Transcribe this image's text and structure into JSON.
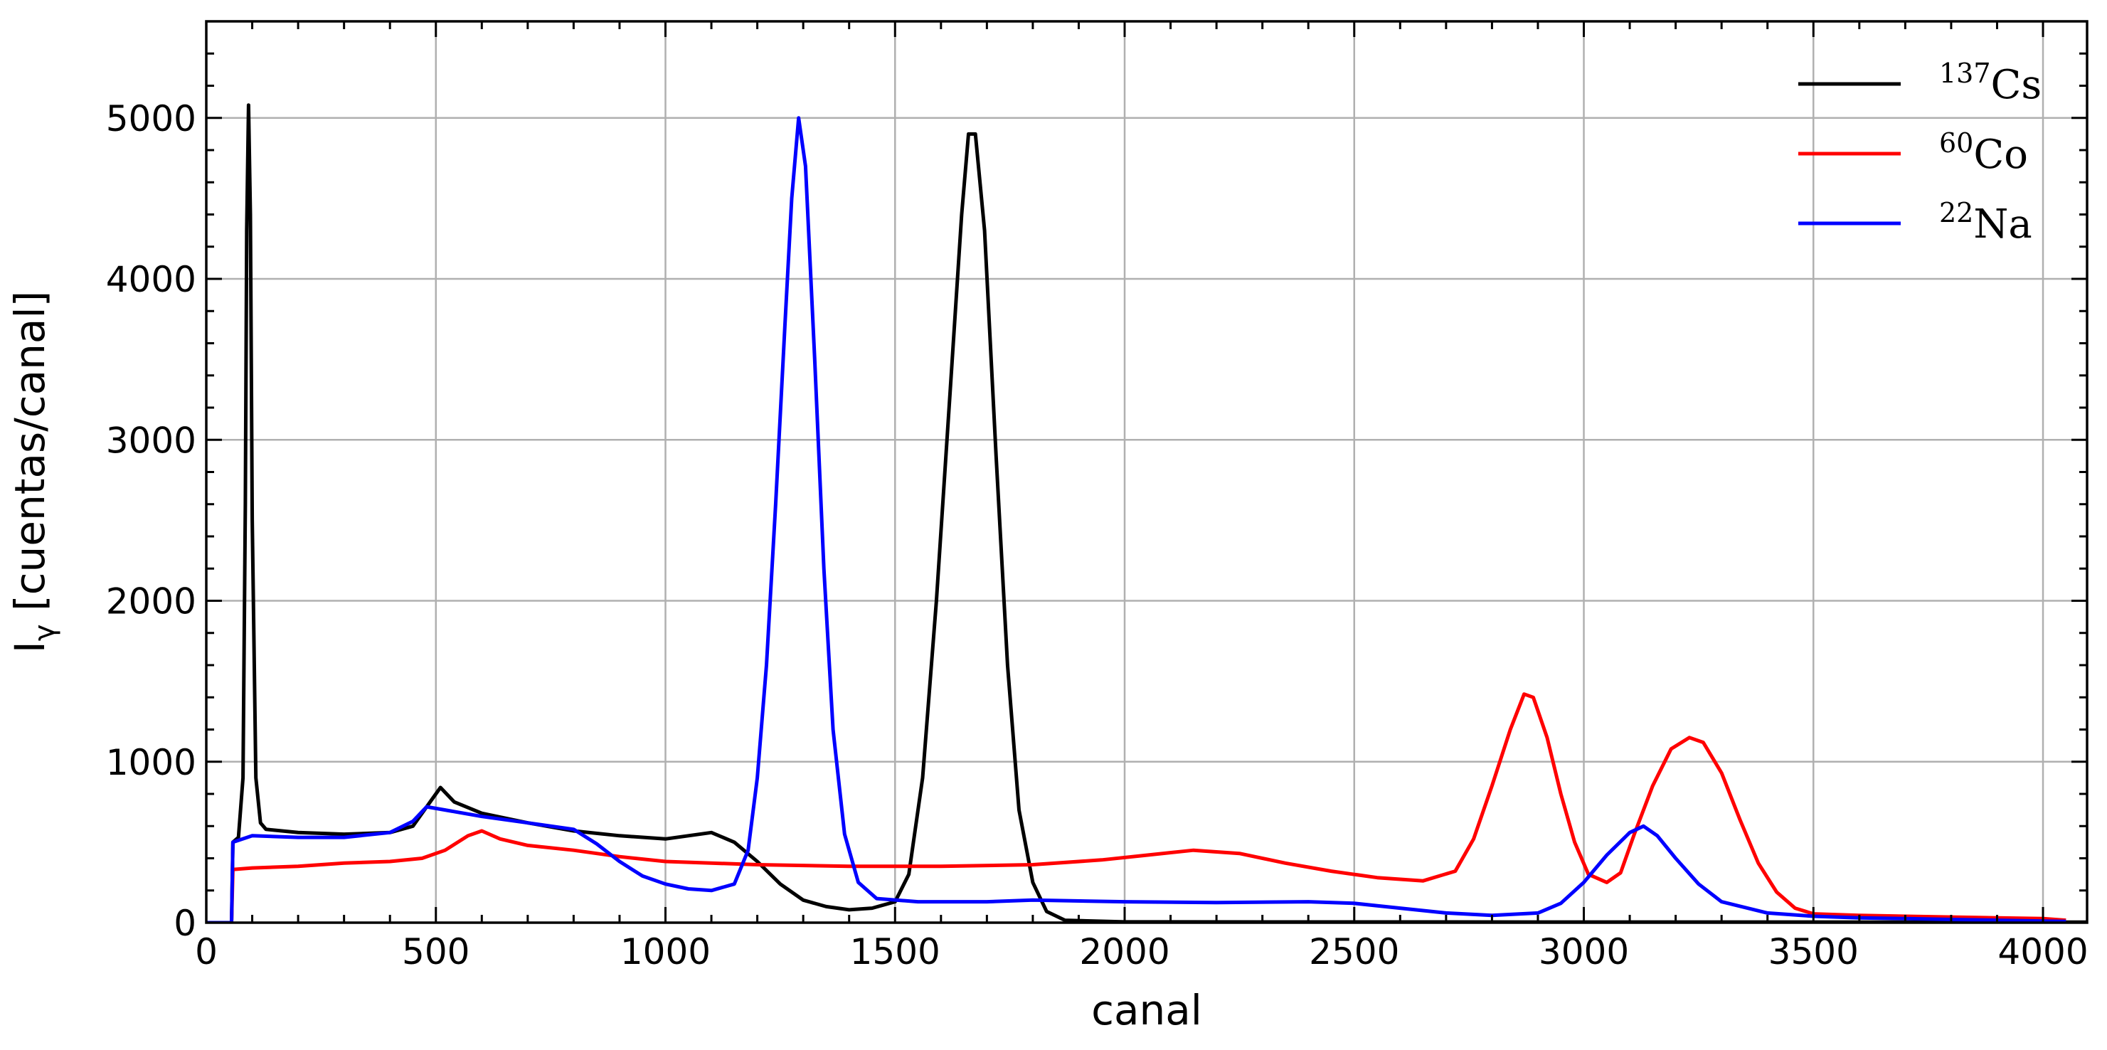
{
  "chart_data": {
    "type": "line",
    "xlabel": "canal",
    "ylabel": "Iγ [cuentas/canal]",
    "ylabel_main": "I",
    "ylabel_sub": "γ",
    "ylabel_rest": " [cuentas/canal]",
    "xlim": [
      0,
      4096
    ],
    "ylim": [
      0,
      5600
    ],
    "grid": true,
    "legend_position": "top-right",
    "xticks": [
      0,
      500,
      1000,
      1500,
      2000,
      2500,
      3000,
      3500,
      4000
    ],
    "yticks": [
      0,
      1000,
      2000,
      3000,
      4000,
      5000
    ],
    "series": [
      {
        "name": "137Cs",
        "name_sup": "137",
        "name_base": "Cs",
        "color": "#000000",
        "points": [
          [
            0,
            0
          ],
          [
            55,
            0
          ],
          [
            58,
            500
          ],
          [
            70,
            530
          ],
          [
            80,
            900
          ],
          [
            85,
            2600
          ],
          [
            88,
            4300
          ],
          [
            92,
            5080
          ],
          [
            96,
            4400
          ],
          [
            100,
            2500
          ],
          [
            108,
            900
          ],
          [
            118,
            620
          ],
          [
            130,
            580
          ],
          [
            200,
            560
          ],
          [
            300,
            550
          ],
          [
            400,
            560
          ],
          [
            450,
            600
          ],
          [
            490,
            760
          ],
          [
            510,
            840
          ],
          [
            540,
            750
          ],
          [
            600,
            680
          ],
          [
            700,
            620
          ],
          [
            800,
            570
          ],
          [
            900,
            540
          ],
          [
            1000,
            520
          ],
          [
            1050,
            540
          ],
          [
            1100,
            560
          ],
          [
            1150,
            500
          ],
          [
            1200,
            380
          ],
          [
            1250,
            240
          ],
          [
            1300,
            140
          ],
          [
            1350,
            100
          ],
          [
            1400,
            80
          ],
          [
            1450,
            90
          ],
          [
            1500,
            130
          ],
          [
            1530,
            300
          ],
          [
            1560,
            900
          ],
          [
            1590,
            2000
          ],
          [
            1620,
            3300
          ],
          [
            1645,
            4400
          ],
          [
            1660,
            4900
          ],
          [
            1675,
            4900
          ],
          [
            1695,
            4300
          ],
          [
            1720,
            2900
          ],
          [
            1745,
            1600
          ],
          [
            1770,
            700
          ],
          [
            1800,
            250
          ],
          [
            1830,
            70
          ],
          [
            1870,
            15
          ],
          [
            2000,
            5
          ],
          [
            4096,
            3
          ]
        ]
      },
      {
        "name": "60Co",
        "name_sup": "60",
        "name_base": "Co",
        "color": "#ff0000",
        "points": [
          [
            0,
            0
          ],
          [
            55,
            0
          ],
          [
            58,
            330
          ],
          [
            100,
            340
          ],
          [
            200,
            350
          ],
          [
            300,
            370
          ],
          [
            400,
            380
          ],
          [
            470,
            400
          ],
          [
            520,
            450
          ],
          [
            570,
            540
          ],
          [
            600,
            570
          ],
          [
            640,
            520
          ],
          [
            700,
            480
          ],
          [
            800,
            450
          ],
          [
            900,
            410
          ],
          [
            1000,
            380
          ],
          [
            1200,
            360
          ],
          [
            1400,
            350
          ],
          [
            1600,
            350
          ],
          [
            1800,
            360
          ],
          [
            1950,
            390
          ],
          [
            2050,
            420
          ],
          [
            2150,
            450
          ],
          [
            2250,
            430
          ],
          [
            2350,
            370
          ],
          [
            2450,
            320
          ],
          [
            2550,
            280
          ],
          [
            2650,
            260
          ],
          [
            2720,
            320
          ],
          [
            2760,
            520
          ],
          [
            2800,
            850
          ],
          [
            2840,
            1200
          ],
          [
            2870,
            1420
          ],
          [
            2890,
            1400
          ],
          [
            2920,
            1150
          ],
          [
            2950,
            800
          ],
          [
            2980,
            500
          ],
          [
            3010,
            300
          ],
          [
            3050,
            250
          ],
          [
            3080,
            310
          ],
          [
            3110,
            550
          ],
          [
            3150,
            850
          ],
          [
            3190,
            1080
          ],
          [
            3230,
            1150
          ],
          [
            3260,
            1120
          ],
          [
            3300,
            930
          ],
          [
            3340,
            640
          ],
          [
            3380,
            370
          ],
          [
            3420,
            190
          ],
          [
            3460,
            90
          ],
          [
            3500,
            55
          ],
          [
            3600,
            45
          ],
          [
            3700,
            40
          ],
          [
            3800,
            35
          ],
          [
            3900,
            30
          ],
          [
            4000,
            25
          ],
          [
            4050,
            15
          ]
        ]
      },
      {
        "name": "22Na",
        "name_sup": "22",
        "name_base": "Na",
        "color": "#0000ff",
        "points": [
          [
            0,
            0
          ],
          [
            55,
            0
          ],
          [
            58,
            500
          ],
          [
            100,
            540
          ],
          [
            200,
            530
          ],
          [
            300,
            530
          ],
          [
            400,
            560
          ],
          [
            450,
            630
          ],
          [
            480,
            720
          ],
          [
            520,
            700
          ],
          [
            600,
            660
          ],
          [
            700,
            620
          ],
          [
            800,
            580
          ],
          [
            850,
            490
          ],
          [
            900,
            380
          ],
          [
            950,
            290
          ],
          [
            1000,
            240
          ],
          [
            1050,
            210
          ],
          [
            1100,
            200
          ],
          [
            1150,
            240
          ],
          [
            1180,
            450
          ],
          [
            1200,
            900
          ],
          [
            1220,
            1600
          ],
          [
            1240,
            2600
          ],
          [
            1260,
            3700
          ],
          [
            1275,
            4500
          ],
          [
            1290,
            5000
          ],
          [
            1305,
            4700
          ],
          [
            1325,
            3500
          ],
          [
            1345,
            2200
          ],
          [
            1365,
            1200
          ],
          [
            1390,
            550
          ],
          [
            1420,
            250
          ],
          [
            1460,
            150
          ],
          [
            1550,
            130
          ],
          [
            1700,
            130
          ],
          [
            1800,
            140
          ],
          [
            2000,
            130
          ],
          [
            2200,
            125
          ],
          [
            2400,
            130
          ],
          [
            2500,
            120
          ],
          [
            2600,
            90
          ],
          [
            2700,
            60
          ],
          [
            2800,
            45
          ],
          [
            2900,
            60
          ],
          [
            2950,
            120
          ],
          [
            3000,
            250
          ],
          [
            3050,
            420
          ],
          [
            3100,
            560
          ],
          [
            3130,
            600
          ],
          [
            3160,
            540
          ],
          [
            3200,
            400
          ],
          [
            3250,
            240
          ],
          [
            3300,
            130
          ],
          [
            3400,
            60
          ],
          [
            3500,
            40
          ],
          [
            3600,
            30
          ],
          [
            3700,
            25
          ],
          [
            3800,
            20
          ],
          [
            3900,
            15
          ],
          [
            4000,
            10
          ],
          [
            4050,
            8
          ]
        ]
      }
    ]
  }
}
